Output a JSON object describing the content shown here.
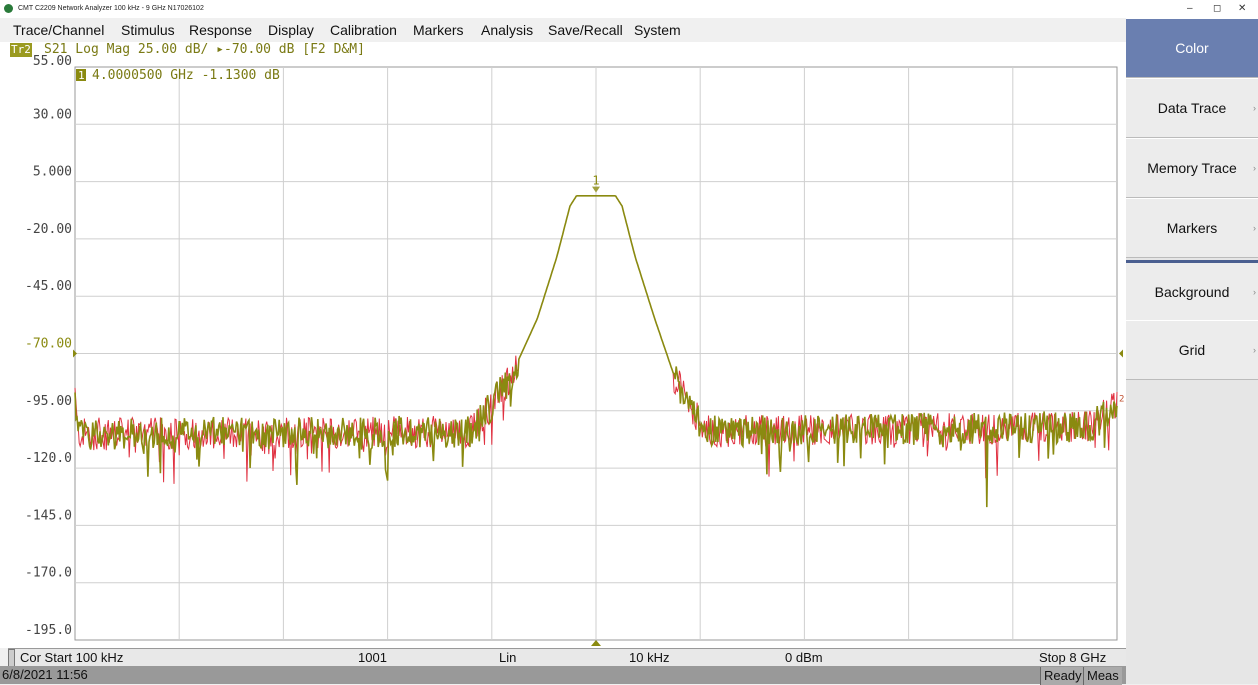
{
  "window": {
    "title": "CMT   C2209   Network Analyzer   100 kHz - 9 GHz   N17026102",
    "controls": [
      "–",
      "◻",
      "✕"
    ]
  },
  "menu": [
    "Trace/Channel",
    "Stimulus",
    "Response",
    "Display",
    "Calibration",
    "Markers",
    "Analysis",
    "Save/Recall",
    "System"
  ],
  "trace_header": {
    "badge": "Tr2",
    "text": "S21 Log Mag 25.00 dB/ ▸-70.00 dB [F2 D&M]"
  },
  "marker_readout": {
    "badge": "1",
    "text": "4.0000500 GHz -1.1300 dB"
  },
  "chart_data": {
    "type": "line",
    "y_ticks": [
      "55.00",
      "30.00",
      "5.000",
      "-20.00",
      "-45.00",
      "-70.00",
      "-95.00",
      "-120.0",
      "-145.0",
      "-170.0",
      "-195.0"
    ],
    "ylim": [
      -195,
      55
    ],
    "xlim_ghz": [
      0.0001,
      8
    ],
    "reference_level_db": -70,
    "marker": {
      "label": "1",
      "freq_ghz": 4.00005,
      "value_db": -1.13
    },
    "series": [
      {
        "color": "#8a8a10"
      },
      {
        "color": "#e03040"
      }
    ],
    "profile_db": [
      {
        "f": 0.0001,
        "y": -87
      },
      {
        "f": 0.02,
        "y": -105
      },
      {
        "f": 3.05,
        "y": -104
      },
      {
        "f": 3.15,
        "y": -96
      },
      {
        "f": 3.35,
        "y": -80
      },
      {
        "f": 3.55,
        "y": -55
      },
      {
        "f": 3.7,
        "y": -28
      },
      {
        "f": 3.8,
        "y": -6
      },
      {
        "f": 3.85,
        "y": -1.5
      },
      {
        "f": 4.15,
        "y": -1.5
      },
      {
        "f": 4.2,
        "y": -6
      },
      {
        "f": 4.3,
        "y": -28
      },
      {
        "f": 4.45,
        "y": -55
      },
      {
        "f": 4.6,
        "y": -80
      },
      {
        "f": 4.75,
        "y": -96
      },
      {
        "f": 4.85,
        "y": -104
      },
      {
        "f": 7.8,
        "y": -102
      },
      {
        "f": 8.0,
        "y": -92
      }
    ]
  },
  "status": {
    "start": "Cor Start 100 kHz",
    "points": "1001",
    "sweep": "Lin",
    "ifbw": "10 kHz",
    "power": "0 dBm",
    "stop": "Stop 8 GHz"
  },
  "bottom": {
    "datetime": "6/8/2021 11:56",
    "ready": "Ready",
    "meas": "Meas"
  },
  "softkeys": [
    "Color",
    "Data Trace",
    "Memory Trace",
    "Markers",
    "Background",
    "Grid"
  ]
}
